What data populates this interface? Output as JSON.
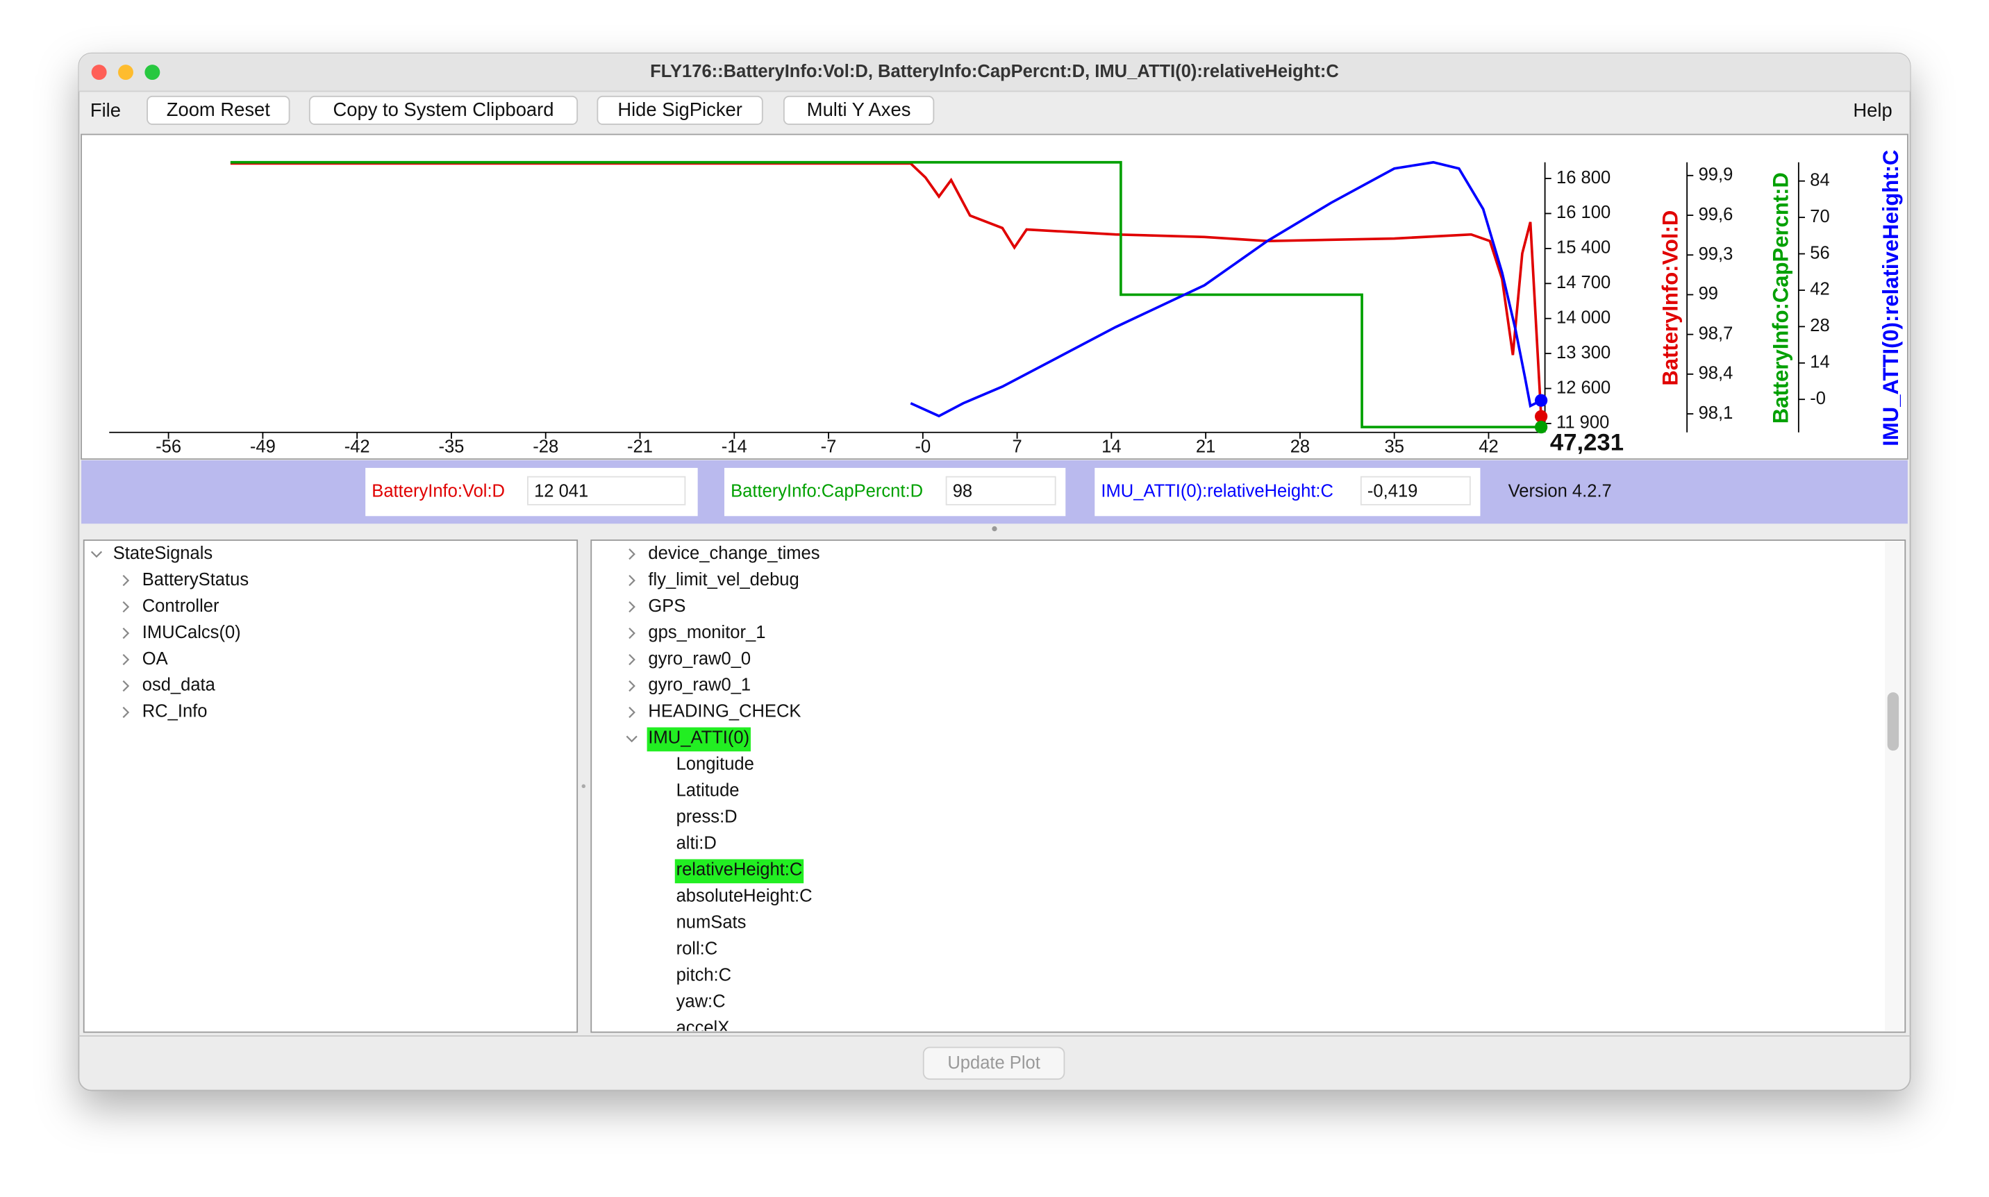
{
  "window": {
    "title": "FLY176::BatteryInfo:Vol:D, BatteryInfo:CapPercnt:D, IMU_ATTI(0):relativeHeight:C"
  },
  "toolbar": {
    "file_menu": "File",
    "help_menu": "Help",
    "buttons": [
      "Zoom Reset",
      "Copy to System Clipboard",
      "Hide SigPicker",
      "Multi Y Axes"
    ]
  },
  "chart_data": {
    "type": "line",
    "xlim": [
      -60.4,
      45.9
    ],
    "xticks": [
      -56,
      -49,
      -42,
      -35,
      -28,
      -21,
      -14,
      -7,
      {
        "value": 0,
        "label": "-0"
      },
      7,
      14,
      21,
      28,
      35,
      42
    ],
    "ylim": [
      11722,
      17124
    ],
    "yticks": [
      {
        "value": 16800,
        "label": "16 800"
      },
      {
        "value": 16100,
        "label": "16 100"
      },
      {
        "value": 15400,
        "label": "15 400"
      },
      {
        "value": 14700,
        "label": "14 700"
      },
      {
        "value": 14000,
        "label": "14 000"
      },
      {
        "value": 13300,
        "label": "13 300"
      },
      {
        "value": 12600,
        "label": "12 600"
      },
      {
        "value": 11900,
        "label": "11 900"
      }
    ],
    "y2lim": [
      97.96,
      100
    ],
    "y2ticks": [
      {
        "value": 99.9,
        "label": "99,9"
      },
      {
        "value": 99.6,
        "label": "99,6"
      },
      {
        "value": 99.3,
        "label": "99,3"
      },
      {
        "value": 99,
        "label": "99"
      },
      {
        "value": 98.7,
        "label": "98,7"
      },
      {
        "value": 98.4,
        "label": "98,4"
      },
      {
        "value": 98.1,
        "label": "98,1"
      }
    ],
    "y3lim": [
      -12.7,
      91.2
    ],
    "y3ticks": [
      84,
      70,
      56,
      42,
      28,
      14,
      {
        "value": 0,
        "label": "-0"
      }
    ],
    "cursor_label": "47,231",
    "series": [
      {
        "name": "BatteryInfo:Vol:D",
        "color": "#e00000",
        "axis": "y",
        "x": [
          -51.4,
          -0.9,
          0.2,
          1.2,
          2.1,
          3.5,
          5.9,
          6.8,
          7.7,
          14.3,
          20.9,
          25.6,
          35,
          40.7,
          42.1,
          43.0,
          43.8,
          44.5,
          45.1,
          45.9
        ],
        "values": [
          17100,
          17100,
          16820,
          16440,
          16770,
          16060,
          15810,
          15420,
          15780,
          15680,
          15630,
          15550,
          15600,
          15680,
          15550,
          14790,
          13270,
          15300,
          15930,
          12041
        ]
      },
      {
        "name": "BatteryInfo:CapPercnt:D",
        "color": "#00a000",
        "axis": "y2",
        "x": [
          -51.4,
          14.7,
          14.7,
          32.6,
          32.6,
          45.9
        ],
        "values": [
          100,
          100,
          99,
          99,
          98,
          98
        ]
      },
      {
        "name": "IMU_ATTI(0):relativeHeight:C",
        "color": "#0000ff",
        "axis": "y3",
        "x": [
          -0.9,
          1.2,
          3.0,
          5.9,
          14.3,
          20.9,
          25.6,
          30.3,
          35,
          37.9,
          39.8,
          41.6,
          43.0,
          44.0,
          44.7,
          45.1,
          45.9
        ],
        "values": [
          -1.5,
          -6.4,
          -1.5,
          4.9,
          27.8,
          43.9,
          61.0,
          75.6,
          88.8,
          91.2,
          88.8,
          73.2,
          48.8,
          26.8,
          8.3,
          -2.5,
          -0.4
        ]
      }
    ]
  },
  "readouts": [
    {
      "label": "BatteryInfo:Vol:D",
      "value": "12 041"
    },
    {
      "label": "BatteryInfo:CapPercnt:D",
      "value": "98"
    },
    {
      "label": "IMU_ATTI(0):relativeHeight:C",
      "value": "-0,419"
    }
  ],
  "version": "Version 4.2.7",
  "signal_tree": {
    "root": "StateSignals",
    "children": [
      "BatteryStatus",
      "Controller",
      "IMUCalcs(0)",
      "OA",
      "osd_data",
      "RC_Info"
    ]
  },
  "detail_tree": {
    "items": [
      {
        "label": "device_change_times"
      },
      {
        "label": "fly_limit_vel_debug"
      },
      {
        "label": "GPS"
      },
      {
        "label": "gps_monitor_1"
      },
      {
        "label": "gyro_raw0_0"
      },
      {
        "label": "gyro_raw0_1"
      },
      {
        "label": "HEADING_CHECK"
      },
      {
        "label": "IMU_ATTI(0)",
        "selected": true,
        "children": [
          {
            "label": "Longitude"
          },
          {
            "label": "Latitude"
          },
          {
            "label": "press:D"
          },
          {
            "label": "alti:D"
          },
          {
            "label": "relativeHeight:C",
            "selected": true
          },
          {
            "label": "absoluteHeight:C"
          },
          {
            "label": "numSats"
          },
          {
            "label": "roll:C"
          },
          {
            "label": "pitch:C"
          },
          {
            "label": "yaw:C"
          },
          {
            "label": "accelX"
          }
        ]
      }
    ]
  },
  "update_button": "Update Plot"
}
